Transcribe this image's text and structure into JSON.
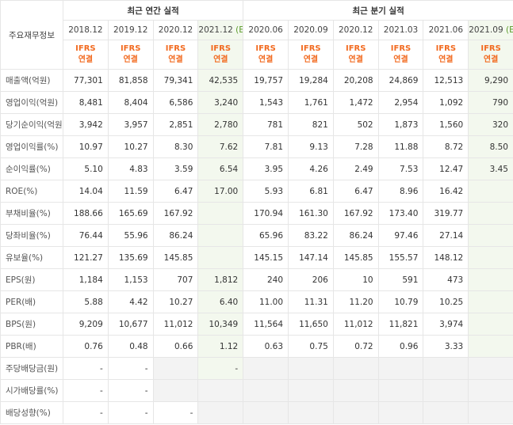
{
  "header": {
    "metric": "주요재무정보",
    "group_annual": "최근 연간 실적",
    "group_quarter": "최근 분기 실적",
    "columns": [
      {
        "period": "2018.12",
        "basis": [
          "IFRS",
          "연결"
        ]
      },
      {
        "period": "2019.12",
        "basis": [
          "IFRS",
          "연결"
        ]
      },
      {
        "period": "2020.12",
        "basis": [
          "IFRS",
          "연결"
        ]
      },
      {
        "period": "2021.12",
        "estimate": "(E)",
        "basis": [
          "IFRS",
          "연결"
        ]
      },
      {
        "period": "2020.06",
        "basis": [
          "IFRS",
          "연결"
        ]
      },
      {
        "period": "2020.09",
        "basis": [
          "IFRS",
          "연결"
        ]
      },
      {
        "period": "2020.12",
        "basis": [
          "IFRS",
          "연결"
        ]
      },
      {
        "period": "2021.03",
        "basis": [
          "IFRS",
          "연결"
        ]
      },
      {
        "period": "2021.06",
        "basis": [
          "IFRS",
          "연결"
        ]
      },
      {
        "period": "2021.09",
        "estimate": "(E)",
        "basis": [
          "IFRS",
          "연결"
        ]
      }
    ]
  },
  "sections": [
    {
      "rows": [
        {
          "label": "매출액(억원)",
          "cells": [
            "77,301",
            "81,858",
            "79,341",
            "42,535",
            "19,757",
            "19,284",
            "20,208",
            "24,869",
            "12,513",
            "9,290"
          ]
        },
        {
          "label": "영업이익(억원)",
          "cells": [
            "8,481",
            "8,404",
            "6,586",
            "3,240",
            "1,543",
            "1,761",
            "1,472",
            "2,954",
            "1,092",
            "790"
          ]
        },
        {
          "label": "당기순이익(억원)",
          "cells": [
            "3,942",
            "3,957",
            "2,851",
            "2,780",
            "781",
            "821",
            "502",
            "1,873",
            "1,560",
            "320"
          ]
        }
      ]
    },
    {
      "rows": [
        {
          "label": "영업이익률(%)",
          "cells": [
            "10.97",
            "10.27",
            "8.30",
            "7.62",
            "7.81",
            "9.13",
            "7.28",
            "11.88",
            "8.72",
            "8.50"
          ]
        },
        {
          "label": "순이익률(%)",
          "cells": [
            "5.10",
            "4.83",
            "3.59",
            "6.54",
            "3.95",
            "4.26",
            "2.49",
            "7.53",
            "12.47",
            "3.45"
          ]
        },
        {
          "label": "ROE(%)",
          "cells": [
            "14.04",
            "11.59",
            "6.47",
            "17.00",
            "5.93",
            "6.81",
            "6.47",
            "8.96",
            "16.42",
            null
          ]
        },
        {
          "label": "부채비율(%)",
          "cells": [
            "188.66",
            "165.69",
            "167.92",
            null,
            "170.94",
            "161.30",
            "167.92",
            "173.40",
            "319.77",
            null
          ]
        },
        {
          "label": "당좌비율(%)",
          "cells": [
            "76.44",
            "55.96",
            "86.24",
            null,
            "65.96",
            "83.22",
            "86.24",
            "97.46",
            "27.14",
            null
          ]
        },
        {
          "label": "유보율(%)",
          "cells": [
            "121.27",
            "135.69",
            "145.85",
            null,
            "145.15",
            "147.14",
            "145.85",
            "155.57",
            "148.12",
            null
          ]
        }
      ]
    },
    {
      "rows": [
        {
          "label": "EPS(원)",
          "cells": [
            "1,184",
            "1,153",
            "707",
            "1,812",
            "240",
            "206",
            "10",
            "591",
            "473",
            null
          ]
        },
        {
          "label": "PER(배)",
          "cells": [
            "5.88",
            "4.42",
            "10.27",
            "6.40",
            "11.00",
            "11.31",
            "11.20",
            "10.79",
            "10.25",
            null
          ]
        },
        {
          "label": "BPS(원)",
          "cells": [
            "9,209",
            "10,677",
            "11,012",
            "10,349",
            "11,564",
            "11,650",
            "11,012",
            "11,821",
            "3,974",
            null
          ]
        },
        {
          "label": "PBR(배)",
          "cells": [
            "0.76",
            "0.48",
            "0.66",
            "1.12",
            "0.63",
            "0.75",
            "0.72",
            "0.96",
            "3.33",
            null
          ]
        }
      ]
    },
    {
      "shaded_empty": true,
      "rows": [
        {
          "label": "주당배당금(원)",
          "cells": [
            "-",
            "-",
            null,
            "-",
            null,
            null,
            null,
            null,
            null,
            null
          ]
        },
        {
          "label": "시가배당률(%)",
          "cells": [
            "-",
            "-",
            null,
            null,
            null,
            null,
            null,
            null,
            null,
            null
          ]
        },
        {
          "label": "배당성향(%)",
          "cells": [
            "-",
            "-",
            "-",
            null,
            null,
            null,
            null,
            null,
            null,
            null
          ]
        }
      ]
    }
  ]
}
